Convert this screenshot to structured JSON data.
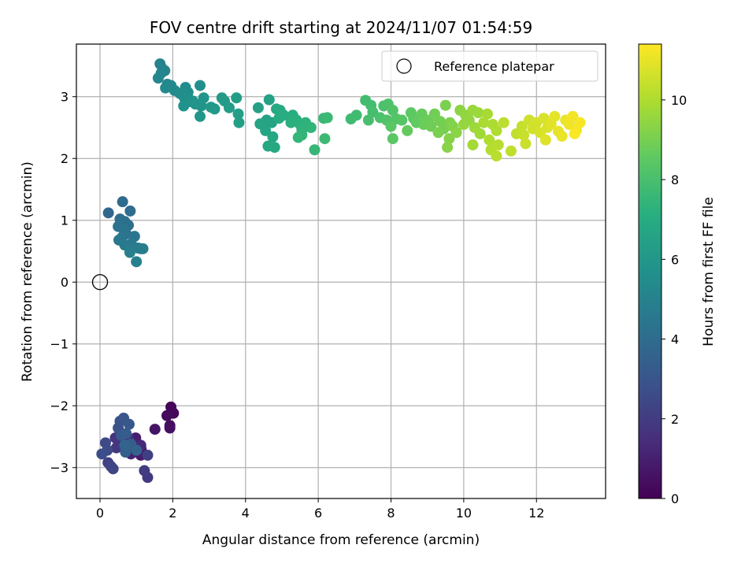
{
  "chart_data": {
    "type": "scatter",
    "title": "FOV centre drift starting at 2024/11/07 01:54:59",
    "xlabel": "Angular distance from reference (arcmin)",
    "ylabel": "Rotation from reference (arcmin)",
    "xlim": [
      -0.65,
      13.9
    ],
    "ylim": [
      -3.5,
      3.85
    ],
    "xticks": [
      0,
      2,
      4,
      6,
      8,
      10,
      12
    ],
    "yticks": [
      -3,
      -2,
      -1,
      0,
      1,
      2,
      3
    ],
    "grid": true,
    "colormap": "viridis",
    "colorbar": {
      "label": "Hours from first FF file",
      "range": [
        0,
        11.4
      ],
      "ticks": [
        0,
        2,
        4,
        6,
        8,
        10
      ]
    },
    "legend": {
      "placement": "top-right",
      "entries": [
        "Reference platepar"
      ]
    },
    "reference_point": {
      "x": 0,
      "y": 0
    },
    "points": [
      [
        1.95,
        -2.02,
        0.1
      ],
      [
        2.02,
        -2.12,
        0.2
      ],
      [
        1.84,
        -2.16,
        0.3
      ],
      [
        1.92,
        -2.32,
        0.4
      ],
      [
        1.92,
        -2.36,
        0.5
      ],
      [
        1.51,
        -2.38,
        0.6
      ],
      [
        1.13,
        -2.7,
        0.7
      ],
      [
        1.12,
        -2.8,
        0.8
      ],
      [
        0.98,
        -2.52,
        0.9
      ],
      [
        1.01,
        -2.6,
        1.0
      ],
      [
        0.85,
        -2.78,
        1.1
      ],
      [
        0.9,
        -2.66,
        1.2
      ],
      [
        1.12,
        -2.64,
        1.3
      ],
      [
        1.02,
        -2.72,
        1.4
      ],
      [
        0.78,
        -2.52,
        1.5
      ],
      [
        0.62,
        -2.58,
        1.6
      ],
      [
        0.42,
        -2.52,
        1.7
      ],
      [
        0.45,
        -2.68,
        1.8
      ],
      [
        1.31,
        -3.16,
        1.9
      ],
      [
        1.22,
        -3.05,
        2.0
      ],
      [
        1.31,
        -2.8,
        2.1
      ],
      [
        0.22,
        -2.92,
        2.2
      ],
      [
        0.3,
        -2.98,
        2.3
      ],
      [
        0.36,
        -3.02,
        2.4
      ],
      [
        0.15,
        -2.6,
        2.5
      ],
      [
        0.2,
        -2.72,
        2.6
      ],
      [
        0.05,
        -2.78,
        2.7
      ],
      [
        0.5,
        -2.36,
        2.8
      ],
      [
        0.55,
        -2.25,
        2.9
      ],
      [
        0.65,
        -2.2,
        3.0
      ],
      [
        0.8,
        -2.3,
        3.1
      ],
      [
        0.58,
        -2.48,
        3.2
      ],
      [
        0.72,
        -2.45,
        3.3
      ],
      [
        0.85,
        -2.62,
        3.4
      ],
      [
        0.7,
        -2.75,
        3.5
      ],
      [
        1.0,
        -2.72,
        3.6
      ],
      [
        0.68,
        -2.64,
        3.7
      ],
      [
        0.23,
        1.12,
        3.8
      ],
      [
        0.62,
        1.3,
        3.9
      ],
      [
        0.83,
        1.15,
        4.0
      ],
      [
        0.55,
        1.02,
        4.1
      ],
      [
        0.68,
        0.98,
        4.15
      ],
      [
        0.78,
        0.92,
        4.2
      ],
      [
        0.5,
        0.9,
        4.25
      ],
      [
        0.65,
        0.85,
        4.3
      ],
      [
        0.72,
        0.78,
        4.35
      ],
      [
        0.6,
        0.72,
        4.4
      ],
      [
        0.95,
        0.74,
        4.45
      ],
      [
        0.52,
        0.68,
        4.5
      ],
      [
        0.86,
        0.62,
        4.55
      ],
      [
        0.68,
        0.6,
        4.6
      ],
      [
        0.8,
        0.57,
        4.65
      ],
      [
        1.05,
        0.55,
        4.7
      ],
      [
        1.12,
        0.54,
        4.75
      ],
      [
        1.18,
        0.54,
        4.8
      ],
      [
        0.82,
        0.48,
        4.85
      ],
      [
        1.0,
        0.33,
        4.9
      ],
      [
        1.65,
        3.53,
        5.0
      ],
      [
        1.72,
        3.45,
        5.05
      ],
      [
        1.78,
        3.42,
        5.1
      ],
      [
        1.68,
        3.38,
        5.15
      ],
      [
        1.6,
        3.3,
        5.2
      ],
      [
        1.85,
        3.2,
        5.25
      ],
      [
        1.95,
        3.18,
        5.3
      ],
      [
        1.8,
        3.14,
        5.35
      ],
      [
        2.05,
        3.1,
        5.4
      ],
      [
        2.35,
        3.15,
        5.45
      ],
      [
        2.2,
        3.05,
        5.5
      ],
      [
        2.42,
        3.07,
        5.55
      ],
      [
        2.75,
        3.18,
        5.6
      ],
      [
        2.32,
        2.98,
        5.65
      ],
      [
        2.45,
        2.92,
        5.7
      ],
      [
        2.3,
        2.85,
        5.75
      ],
      [
        2.55,
        2.93,
        5.8
      ],
      [
        2.62,
        2.88,
        5.85
      ],
      [
        2.78,
        2.85,
        5.9
      ],
      [
        2.85,
        2.98,
        5.95
      ],
      [
        2.75,
        2.68,
        6.0
      ],
      [
        3.05,
        2.83,
        6.05
      ],
      [
        3.15,
        2.8,
        6.1
      ],
      [
        3.35,
        2.98,
        6.15
      ],
      [
        3.42,
        2.93,
        6.2
      ],
      [
        3.55,
        2.82,
        6.25
      ],
      [
        3.75,
        2.98,
        6.3
      ],
      [
        3.8,
        2.72,
        6.35
      ],
      [
        3.82,
        2.58,
        6.4
      ],
      [
        4.35,
        2.82,
        6.45
      ],
      [
        4.65,
        2.95,
        6.5
      ],
      [
        4.58,
        2.62,
        6.55
      ],
      [
        4.72,
        2.58,
        6.6
      ],
      [
        4.4,
        2.56,
        6.65
      ],
      [
        4.55,
        2.45,
        6.7
      ],
      [
        4.75,
        2.35,
        6.75
      ],
      [
        4.62,
        2.2,
        6.8
      ],
      [
        4.8,
        2.18,
        6.85
      ],
      [
        4.85,
        2.8,
        6.9
      ],
      [
        4.95,
        2.78,
        6.95
      ],
      [
        4.92,
        2.65,
        7.0
      ],
      [
        5.05,
        2.7,
        7.05
      ],
      [
        5.3,
        2.7,
        7.1
      ],
      [
        5.4,
        2.62,
        7.15
      ],
      [
        5.25,
        2.58,
        7.2
      ],
      [
        5.5,
        2.55,
        7.25
      ],
      [
        5.65,
        2.58,
        7.3
      ],
      [
        5.55,
        2.46,
        7.35
      ],
      [
        5.8,
        2.5,
        7.4
      ],
      [
        5.55,
        2.38,
        7.45
      ],
      [
        5.45,
        2.34,
        7.5
      ],
      [
        5.9,
        2.14,
        7.55
      ],
      [
        6.15,
        2.65,
        7.6
      ],
      [
        6.25,
        2.66,
        7.65
      ],
      [
        6.18,
        2.32,
        7.7
      ],
      [
        6.9,
        2.64,
        7.75
      ],
      [
        7.05,
        2.7,
        7.8
      ],
      [
        7.3,
        2.94,
        7.85
      ],
      [
        7.45,
        2.86,
        7.9
      ],
      [
        7.5,
        2.75,
        7.95
      ],
      [
        7.38,
        2.62,
        8.0
      ],
      [
        7.7,
        2.66,
        8.05
      ],
      [
        7.8,
        2.85,
        8.1
      ],
      [
        7.92,
        2.88,
        8.15
      ],
      [
        7.88,
        2.62,
        8.2
      ],
      [
        8.05,
        2.78,
        8.25
      ],
      [
        8.15,
        2.64,
        8.3
      ],
      [
        8.3,
        2.62,
        8.35
      ],
      [
        8.0,
        2.52,
        8.4
      ],
      [
        8.05,
        2.32,
        8.45
      ],
      [
        8.55,
        2.74,
        8.5
      ],
      [
        8.62,
        2.65,
        8.55
      ],
      [
        8.7,
        2.58,
        8.6
      ],
      [
        8.45,
        2.45,
        8.65
      ],
      [
        8.85,
        2.72,
        8.7
      ],
      [
        8.9,
        2.55,
        8.75
      ],
      [
        9.05,
        2.62,
        8.8
      ],
      [
        9.1,
        2.52,
        8.85
      ],
      [
        9.2,
        2.72,
        8.9
      ],
      [
        9.35,
        2.6,
        8.95
      ],
      [
        9.45,
        2.48,
        9.0
      ],
      [
        9.3,
        2.42,
        9.05
      ],
      [
        9.5,
        2.86,
        9.1
      ],
      [
        9.62,
        2.58,
        9.15
      ],
      [
        9.7,
        2.52,
        9.2
      ],
      [
        9.6,
        2.32,
        9.25
      ],
      [
        9.55,
        2.18,
        9.3
      ],
      [
        9.8,
        2.42,
        9.35
      ],
      [
        9.9,
        2.78,
        9.4
      ],
      [
        10.05,
        2.7,
        9.45
      ],
      [
        10.15,
        2.62,
        9.5
      ],
      [
        10.0,
        2.55,
        9.55
      ],
      [
        10.25,
        2.78,
        9.6
      ],
      [
        10.4,
        2.74,
        9.65
      ],
      [
        10.3,
        2.5,
        9.7
      ],
      [
        10.45,
        2.4,
        9.75
      ],
      [
        10.25,
        2.22,
        9.8
      ],
      [
        10.65,
        2.72,
        9.85
      ],
      [
        10.55,
        2.58,
        9.9
      ],
      [
        10.8,
        2.55,
        9.95
      ],
      [
        10.9,
        2.45,
        10.0
      ],
      [
        10.7,
        2.3,
        10.05
      ],
      [
        10.75,
        2.14,
        10.1
      ],
      [
        10.95,
        2.22,
        10.15
      ],
      [
        10.9,
        2.04,
        10.2
      ],
      [
        11.1,
        2.58,
        10.25
      ],
      [
        11.3,
        2.12,
        10.3
      ],
      [
        11.45,
        2.4,
        10.35
      ],
      [
        11.6,
        2.52,
        10.4
      ],
      [
        11.65,
        2.38,
        10.45
      ],
      [
        11.7,
        2.24,
        10.5
      ],
      [
        11.8,
        2.62,
        10.55
      ],
      [
        11.9,
        2.48,
        10.6
      ],
      [
        12.0,
        2.58,
        10.65
      ],
      [
        12.1,
        2.42,
        10.7
      ],
      [
        12.2,
        2.65,
        10.75
      ],
      [
        12.3,
        2.5,
        10.8
      ],
      [
        12.25,
        2.3,
        10.85
      ],
      [
        12.4,
        2.56,
        10.9
      ],
      [
        12.5,
        2.68,
        10.95
      ],
      [
        12.6,
        2.44,
        11.0
      ],
      [
        12.7,
        2.36,
        11.05
      ],
      [
        12.8,
        2.62,
        11.1
      ],
      [
        12.9,
        2.55,
        11.15
      ],
      [
        13.0,
        2.68,
        11.2
      ],
      [
        13.1,
        2.46,
        11.25
      ],
      [
        13.2,
        2.58,
        11.3
      ],
      [
        13.05,
        2.4,
        11.35
      ]
    ]
  }
}
